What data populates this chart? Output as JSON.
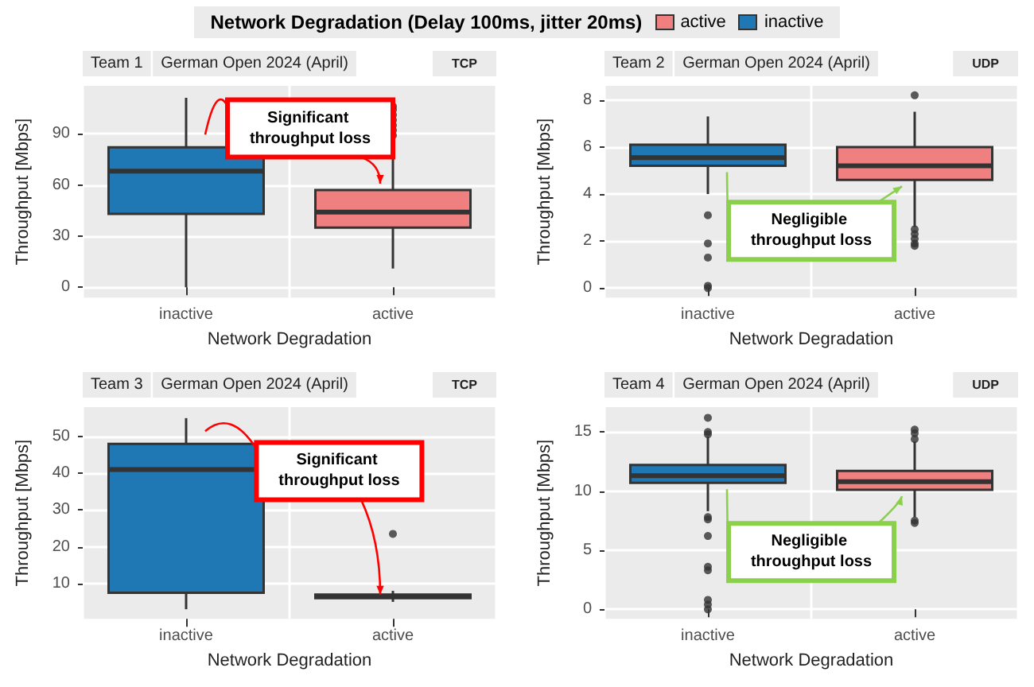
{
  "chart_data": [
    {
      "type": "box",
      "title": "Team 1",
      "subtitle": "German Open 2024 (April)",
      "xlabel": "Network Degradation",
      "ylabel": "Throughput [Mbps]",
      "legend_title": "Network Degradation (Delay 100ms, jitter 20ms)",
      "legend": "top",
      "grid": true,
      "categories": [
        "inactive",
        "active"
      ],
      "ylim": [
        -6,
        118
      ],
      "yticks": [
        0,
        30,
        60,
        90
      ],
      "annotations": [
        "TCP",
        "Significant throughput loss"
      ],
      "series": [
        {
          "name": "active",
          "color": "#f08080",
          "boxes": [
            null,
            {
              "low": 11,
              "q1": 35,
              "median": 44,
              "q3": 57,
              "high": 88,
              "outliers": [
                89,
                92,
                95,
                98,
                101,
                104,
                106
              ]
            }
          ]
        },
        {
          "name": "inactive",
          "color": "#1f77b4",
          "boxes": [
            {
              "low": 0,
              "q1": 43,
              "median": 68,
              "q3": 82,
              "high": 111
            },
            null
          ]
        }
      ]
    },
    {
      "type": "box",
      "title": "Team 2",
      "subtitle": "German Open 2024 (April)",
      "xlabel": "Network Degradation",
      "ylabel": "Throughput [Mbps]",
      "grid": true,
      "categories": [
        "inactive",
        "active"
      ],
      "ylim": [
        -0.4,
        8.6
      ],
      "yticks": [
        0,
        2,
        4,
        6,
        8
      ],
      "annotations": [
        "UDP",
        "Negligible throughput loss"
      ],
      "series": [
        {
          "color": "#f08080",
          "boxes": [
            null,
            {
              "low": 2.6,
              "q1": 4.6,
              "median": 5.2,
              "q3": 6.0,
              "high": 7.5,
              "outliers": [
                8.2,
                2.5,
                2.3,
                2.1,
                1.9,
                1.8
              ]
            }
          ]
        },
        {
          "color": "#1f77b4",
          "boxes": [
            {
              "low": 4.0,
              "q1": 5.2,
              "median": 5.55,
              "q3": 6.1,
              "high": 7.3,
              "outliers": [
                3.1,
                1.9,
                1.3,
                0.1,
                0
              ]
            },
            null
          ]
        }
      ]
    },
    {
      "type": "box",
      "title": "Team 3",
      "subtitle": "German Open 2024 (April)",
      "xlabel": "Network Degradation",
      "ylabel": "Throughput [Mbps]",
      "grid": true,
      "categories": [
        "inactive",
        "active"
      ],
      "ylim": [
        0.4,
        58
      ],
      "yticks": [
        10,
        20,
        30,
        40,
        50
      ],
      "annotations": [
        "TCP",
        {
          "text": "Significant throughput loss",
          "x": "active",
          "y": 7
        }
      ],
      "series": [
        {
          "color": "#f08080",
          "boxes": [
            null,
            {
              "low": 5,
              "q1": 6,
              "median": 6.5,
              "q3": 7,
              "high": 8,
              "outliers": [
                23.5
              ]
            }
          ]
        },
        {
          "color": "#1f77b4",
          "boxes": [
            {
              "low": 3,
              "q1": 7.5,
              "median": 41,
              "q3": 48,
              "high": 55
            },
            null
          ]
        }
      ]
    },
    {
      "type": "box",
      "title": "Team 4",
      "subtitle": "German Open 2024 (April)",
      "xlabel": "Network Degradation",
      "ylabel": "Throughput [Mbps]",
      "grid": true,
      "categories": [
        "inactive",
        "active"
      ],
      "ylim": [
        -0.8,
        17.1
      ],
      "yticks": [
        0,
        5,
        10,
        15
      ],
      "annotations": [
        "UDP",
        "Negligible throughput loss"
      ],
      "series": [
        {
          "color": "#f08080",
          "boxes": [
            null,
            {
              "low": 7.8,
              "q1": 10.1,
              "median": 10.8,
              "q3": 11.7,
              "high": 14.2,
              "outliers": [
                15.2,
                14.9,
                14.4,
                7.5,
                7.3
              ]
            }
          ]
        },
        {
          "color": "#1f77b4",
          "boxes": [
            {
              "low": 8.3,
              "q1": 10.7,
              "median": 11.3,
              "q3": 12.2,
              "high": 14.6,
              "outliers": [
                16.2,
                15,
                14.8,
                7.8,
                7.6,
                6.2,
                3.6,
                3.3,
                0.8,
                0.4,
                0
              ]
            },
            null
          ]
        }
      ]
    }
  ]
}
